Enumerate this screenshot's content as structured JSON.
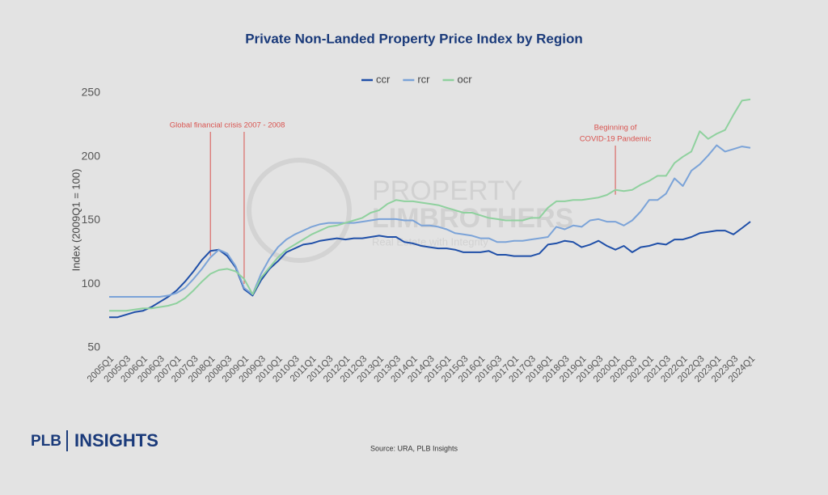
{
  "chart_data": {
    "type": "line",
    "title": "Private Non-Landed Property Price Index by Region",
    "y_label": "Index (2009Q1 = 100)",
    "source": "Source: URA, PLB Insights",
    "brand": {
      "left": "PLB",
      "right": "INSIGHTS"
    },
    "watermark": {
      "line1": "PROPERTY",
      "line2": "LIMBROTHERS",
      "tagline": "Real Estate with Integrity"
    },
    "categories": [
      "2005Q1",
      null,
      "2005Q3",
      null,
      "2006Q1",
      null,
      "2006Q3",
      null,
      "2007Q1",
      null,
      "2007Q3",
      null,
      "2008Q1",
      null,
      "2008Q3",
      null,
      "2009Q1",
      null,
      "2009Q3",
      null,
      "2010Q1",
      null,
      "2010Q3",
      null,
      "2011Q1",
      null,
      "2011Q3",
      null,
      "2012Q1",
      null,
      "2012Q3",
      null,
      "2013Q1",
      null,
      "2013Q3",
      null,
      "2014Q1",
      null,
      "2014Q3",
      null,
      "2015Q1",
      null,
      "2015Q3",
      null,
      "2016Q1",
      null,
      "2016Q3",
      null,
      "2017Q1",
      null,
      "2017Q3",
      null,
      "2018Q1",
      null,
      "2018Q3",
      null,
      "2019Q1",
      null,
      "2019Q3",
      null,
      "2020Q1",
      null,
      "2020Q3",
      null,
      "2021Q1",
      null,
      "2021Q3",
      null,
      "2022Q1",
      null,
      "2022Q3",
      null,
      "2023Q1",
      null,
      "2023Q3",
      null,
      "2024Q1"
    ],
    "series": [
      {
        "name": "ccr",
        "color": "#1f4fa8",
        "values": [
          74,
          74,
          76,
          78,
          79,
          82,
          86,
          90,
          95,
          102,
          110,
          119,
          126,
          127,
          122,
          113,
          96,
          91,
          103,
          112,
          118,
          125,
          128,
          131,
          132,
          134,
          135,
          136,
          135,
          136,
          136,
          137,
          138,
          137,
          137,
          133,
          132,
          130,
          129,
          128,
          128,
          127,
          125,
          125,
          125,
          126,
          123,
          123,
          122,
          122,
          122,
          124,
          131,
          132,
          134,
          133,
          129,
          131,
          134,
          130,
          127,
          130,
          125,
          129,
          130,
          132,
          131,
          135,
          135,
          137,
          140,
          141,
          142,
          142,
          139,
          144,
          149
        ]
      },
      {
        "name": "rcr",
        "color": "#7ba3d8",
        "values": [
          90,
          90,
          90,
          90,
          90,
          90,
          90,
          91,
          93,
          97,
          104,
          112,
          121,
          127,
          124,
          114,
          97,
          92,
          108,
          120,
          129,
          135,
          139,
          142,
          145,
          147,
          148,
          148,
          148,
          148,
          149,
          150,
          151,
          151,
          151,
          150,
          150,
          146,
          146,
          145,
          143,
          140,
          139,
          138,
          136,
          136,
          133,
          133,
          134,
          134,
          135,
          136,
          137,
          145,
          143,
          146,
          145,
          150,
          151,
          149,
          149,
          146,
          150,
          157,
          166,
          166,
          171,
          183,
          177,
          189,
          194,
          201,
          209,
          204,
          206,
          208,
          207
        ]
      },
      {
        "name": "ocr",
        "color": "#8fd19e",
        "values": [
          79,
          79,
          79,
          80,
          81,
          81,
          82,
          83,
          85,
          89,
          95,
          102,
          108,
          111,
          112,
          110,
          104,
          92,
          105,
          113,
          121,
          127,
          131,
          135,
          139,
          142,
          145,
          146,
          148,
          150,
          152,
          156,
          158,
          163,
          166,
          165,
          165,
          164,
          163,
          162,
          160,
          158,
          156,
          156,
          154,
          152,
          151,
          150,
          150,
          150,
          152,
          152,
          160,
          165,
          165,
          166,
          166,
          167,
          168,
          170,
          174,
          173,
          174,
          178,
          181,
          185,
          185,
          195,
          200,
          204,
          220,
          214,
          218,
          221,
          233,
          244,
          245
        ]
      }
    ],
    "ylim": [
      50,
      250
    ],
    "yticks": [
      50,
      100,
      150,
      200,
      250
    ],
    "legend": "top",
    "annotations": [
      {
        "text": [
          "Global financial crisis 2007 - 2008"
        ],
        "at": [
          "2008Q1",
          "2009Q1"
        ],
        "color": "#d9534f"
      },
      {
        "text": [
          "Beginning of",
          "COVID-19 Pandemic"
        ],
        "at": [
          "2020Q1"
        ],
        "color": "#d9534f"
      }
    ]
  }
}
